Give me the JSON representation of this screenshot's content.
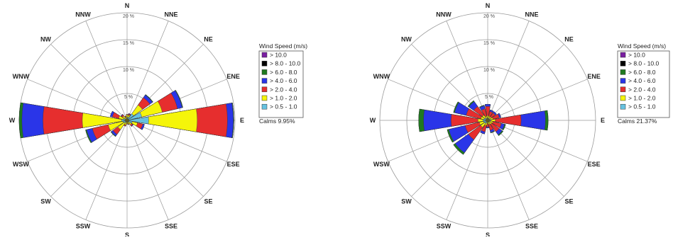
{
  "chart_data": [
    {
      "type": "windrose",
      "directions": [
        "N",
        "NNE",
        "NE",
        "ENE",
        "E",
        "ESE",
        "SE",
        "SSE",
        "S",
        "SSW",
        "SW",
        "WSW",
        "W",
        "WNW",
        "NW",
        "NNW"
      ],
      "radial_ticks": [
        {
          "value": 5,
          "label": "5 %"
        },
        {
          "value": 10,
          "label": "10 %"
        },
        {
          "value": 15,
          "label": "15 %"
        },
        {
          "value": 20,
          "label": "20 %"
        }
      ],
      "rmax": 20,
      "legend": {
        "title": "Wind Speed (m/s)",
        "position": "right",
        "bins": [
          {
            "label": "> 10.0",
            "color": "#7a1fa2"
          },
          {
            "label": "> 8.0 - 10.0",
            "color": "#000000"
          },
          {
            "label": "> 6.0 - 8.0",
            "color": "#1f7a1f"
          },
          {
            "label": "> 4.0 - 6.0",
            "color": "#2a35e8"
          },
          {
            "label": "> 2.0 - 4.0",
            "color": "#e62e2e"
          },
          {
            "label": "> 1.0 - 2.0",
            "color": "#f5f50a"
          },
          {
            "label": "> 0.5 - 1.0",
            "color": "#66c2e0"
          }
        ]
      },
      "calms": "Calms 9.95%",
      "series": [
        {
          "direction": "N",
          "cumulative": [
            0.6,
            1.0,
            1.1,
            1.1,
            1.1,
            1.1,
            1.1
          ]
        },
        {
          "direction": "NNE",
          "cumulative": [
            0.6,
            1.0,
            1.2,
            1.3,
            1.3,
            1.3,
            1.3
          ]
        },
        {
          "direction": "NE",
          "cumulative": [
            1.5,
            3.5,
            5.2,
            5.8,
            5.9,
            5.9,
            5.9
          ]
        },
        {
          "direction": "ENE",
          "cumulative": [
            2.8,
            6.7,
            9.6,
            10.5,
            10.6,
            10.6,
            10.6
          ]
        },
        {
          "direction": "E",
          "cumulative": [
            4.0,
            13.0,
            18.6,
            19.7,
            19.8,
            19.8,
            19.8
          ]
        },
        {
          "direction": "ESE",
          "cumulative": [
            1.0,
            2.0,
            3.0,
            3.3,
            3.3,
            3.3,
            3.3
          ]
        },
        {
          "direction": "SE",
          "cumulative": [
            0.5,
            1.0,
            1.3,
            1.4,
            1.4,
            1.4,
            1.4
          ]
        },
        {
          "direction": "SSE",
          "cumulative": [
            0.4,
            0.7,
            0.8,
            0.8,
            0.8,
            0.8,
            0.8
          ]
        },
        {
          "direction": "S",
          "cumulative": [
            0.4,
            0.6,
            0.7,
            0.7,
            0.7,
            0.7,
            0.7
          ]
        },
        {
          "direction": "SSW",
          "cumulative": [
            0.4,
            0.9,
            1.1,
            1.1,
            1.1,
            1.1,
            1.1
          ]
        },
        {
          "direction": "SW",
          "cumulative": [
            0.6,
            2.1,
            3.2,
            3.6,
            3.7,
            3.7,
            3.7
          ]
        },
        {
          "direction": "WSW",
          "cumulative": [
            0.8,
            3.6,
            6.6,
            7.7,
            7.9,
            7.9,
            7.9
          ]
        },
        {
          "direction": "W",
          "cumulative": [
            1.0,
            8.3,
            15.6,
            19.5,
            20.0,
            20.0,
            20.0
          ]
        },
        {
          "direction": "WNW",
          "cumulative": [
            0.7,
            1.6,
            2.8,
            3.2,
            3.2,
            3.2,
            3.2
          ]
        },
        {
          "direction": "NW",
          "cumulative": [
            0.4,
            1.0,
            1.3,
            1.4,
            1.4,
            1.4,
            1.4
          ]
        },
        {
          "direction": "NNW",
          "cumulative": [
            0.3,
            0.6,
            0.8,
            0.8,
            0.8,
            0.8,
            0.8
          ]
        }
      ]
    },
    {
      "type": "windrose",
      "directions": [
        "N",
        "NNE",
        "NE",
        "ENE",
        "E",
        "ESE",
        "SE",
        "SSE",
        "S",
        "SSW",
        "SW",
        "WSW",
        "W",
        "WNW",
        "NW",
        "NNW"
      ],
      "radial_ticks": [
        {
          "value": 5,
          "label": "5 %"
        },
        {
          "value": 10,
          "label": "10 %"
        },
        {
          "value": 15,
          "label": "15 %"
        },
        {
          "value": 20,
          "label": "20 %"
        }
      ],
      "rmax": 20,
      "legend": {
        "title": "Wind Speed (m/s)",
        "position": "right",
        "bins": [
          {
            "label": "> 10.0",
            "color": "#7a1fa2"
          },
          {
            "label": "> 8.0 - 10.0",
            "color": "#000000"
          },
          {
            "label": "> 6.0 - 8.0",
            "color": "#1f7a1f"
          },
          {
            "label": "> 4.0 - 6.0",
            "color": "#2a35e8"
          },
          {
            "label": "> 2.0 - 4.0",
            "color": "#e62e2e"
          },
          {
            "label": "> 1.0 - 2.0",
            "color": "#f5f50a"
          },
          {
            "label": "> 0.5 - 1.0",
            "color": "#66c2e0"
          }
        ]
      },
      "calms": "Calms 21.37%",
      "series": [
        {
          "direction": "N",
          "cumulative": [
            0.5,
            0.9,
            2.6,
            3.0,
            3.0,
            3.0,
            3.0
          ]
        },
        {
          "direction": "NNE",
          "cumulative": [
            0.4,
            0.8,
            1.7,
            2.0,
            2.0,
            2.0,
            2.0
          ]
        },
        {
          "direction": "NE",
          "cumulative": [
            0.4,
            0.8,
            1.7,
            2.0,
            2.0,
            2.0,
            2.0
          ]
        },
        {
          "direction": "ENE",
          "cumulative": [
            0.5,
            1.0,
            2.2,
            2.5,
            2.5,
            2.5,
            2.5
          ]
        },
        {
          "direction": "E",
          "cumulative": [
            0.6,
            1.4,
            6.2,
            10.7,
            11.2,
            11.2,
            11.2
          ]
        },
        {
          "direction": "ESE",
          "cumulative": [
            0.5,
            1.0,
            2.6,
            3.2,
            3.4,
            3.4,
            3.4
          ]
        },
        {
          "direction": "SE",
          "cumulative": [
            0.4,
            0.9,
            2.6,
            3.3,
            3.5,
            3.5,
            3.5
          ]
        },
        {
          "direction": "SSE",
          "cumulative": [
            0.4,
            0.8,
            1.9,
            2.3,
            2.4,
            2.4,
            2.4
          ]
        },
        {
          "direction": "S",
          "cumulative": [
            0.3,
            0.6,
            1.2,
            1.4,
            1.4,
            1.4,
            1.4
          ]
        },
        {
          "direction": "SSW",
          "cumulative": [
            0.5,
            1.0,
            2.2,
            2.6,
            2.6,
            2.6,
            2.6
          ]
        },
        {
          "direction": "SW",
          "cumulative": [
            0.7,
            1.6,
            4.4,
            7.4,
            7.8,
            7.8,
            7.8
          ]
        },
        {
          "direction": "WSW",
          "cumulative": [
            0.8,
            1.6,
            4.3,
            7.4,
            7.7,
            7.7,
            7.7
          ]
        },
        {
          "direction": "W",
          "cumulative": [
            0.9,
            1.8,
            6.8,
            11.9,
            12.8,
            12.8,
            12.8
          ]
        },
        {
          "direction": "WNW",
          "cumulative": [
            0.7,
            1.3,
            4.1,
            6.3,
            6.5,
            6.5,
            6.5
          ]
        },
        {
          "direction": "NW",
          "cumulative": [
            0.6,
            1.2,
            3.2,
            4.3,
            4.5,
            4.5,
            4.5
          ]
        },
        {
          "direction": "NNW",
          "cumulative": [
            0.4,
            0.8,
            2.2,
            2.8,
            2.9,
            2.9,
            2.9
          ]
        }
      ]
    }
  ]
}
